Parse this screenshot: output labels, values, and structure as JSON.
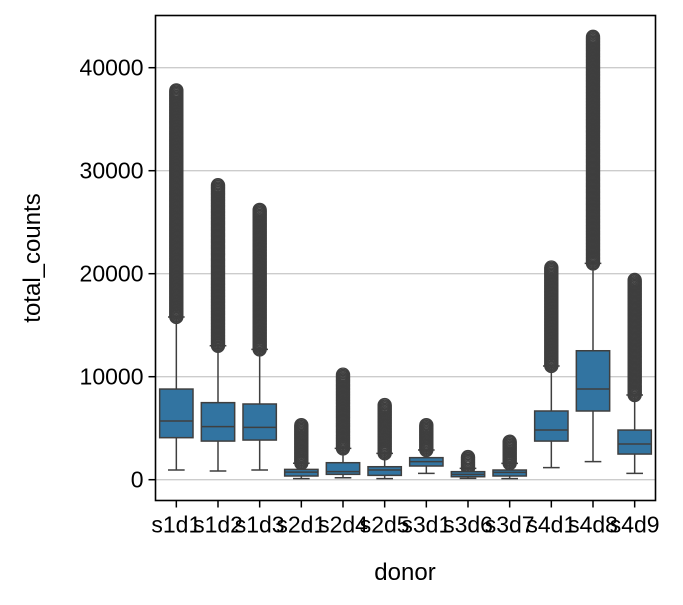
{
  "chart_data": {
    "type": "box",
    "title": "",
    "xlabel": "donor",
    "ylabel": "total_counts",
    "ylim": [
      -2000,
      45100
    ],
    "yticks": [
      0,
      10000,
      20000,
      30000,
      40000
    ],
    "ytick_labels": [
      "0",
      "10000",
      "20000",
      "30000",
      "40000"
    ],
    "grid": "horizontal",
    "box_color": "#3274a1",
    "line_color": "#3f3f3f",
    "grid_color": "#cccccc",
    "categories": [
      "s1d1",
      "s1d2",
      "s1d3",
      "s2d1",
      "s2d4",
      "s2d5",
      "s3d1",
      "s3d6",
      "s3d7",
      "s4d1",
      "s4d8",
      "s4d9"
    ],
    "boxes": [
      {
        "low": 940,
        "q1": 4080,
        "median": 5700,
        "q3": 8800,
        "high": 15800,
        "outlier_max": 37800
      },
      {
        "low": 840,
        "q1": 3750,
        "median": 5150,
        "q3": 7480,
        "high": 13000,
        "outlier_max": 28600
      },
      {
        "low": 940,
        "q1": 3850,
        "median": 5080,
        "q3": 7350,
        "high": 12650,
        "outlier_max": 26200
      },
      {
        "low": 100,
        "q1": 360,
        "median": 740,
        "q3": 1000,
        "high": 1600,
        "outlier_max": 5300
      },
      {
        "low": 190,
        "q1": 520,
        "median": 780,
        "q3": 1650,
        "high": 3040,
        "outlier_max": 10200
      },
      {
        "low": 100,
        "q1": 420,
        "median": 940,
        "q3": 1260,
        "high": 2560,
        "outlier_max": 7250
      },
      {
        "low": 615,
        "q1": 1330,
        "median": 1750,
        "q3": 2140,
        "high": 2880,
        "outlier_max": 5300
      },
      {
        "low": 130,
        "q1": 290,
        "median": 520,
        "q3": 780,
        "high": 1100,
        "outlier_max": 2200
      },
      {
        "low": 100,
        "q1": 360,
        "median": 710,
        "q3": 940,
        "high": 1590,
        "outlier_max": 3690
      },
      {
        "low": 1170,
        "q1": 3750,
        "median": 4820,
        "q3": 6670,
        "high": 11040,
        "outlier_max": 20600
      },
      {
        "low": 1750,
        "q1": 6670,
        "median": 8800,
        "q3": 12520,
        "high": 21000,
        "outlier_max": 43000
      },
      {
        "low": 615,
        "q1": 2490,
        "median": 3460,
        "q3": 4820,
        "high": 8220,
        "outlier_max": 19400
      }
    ]
  }
}
